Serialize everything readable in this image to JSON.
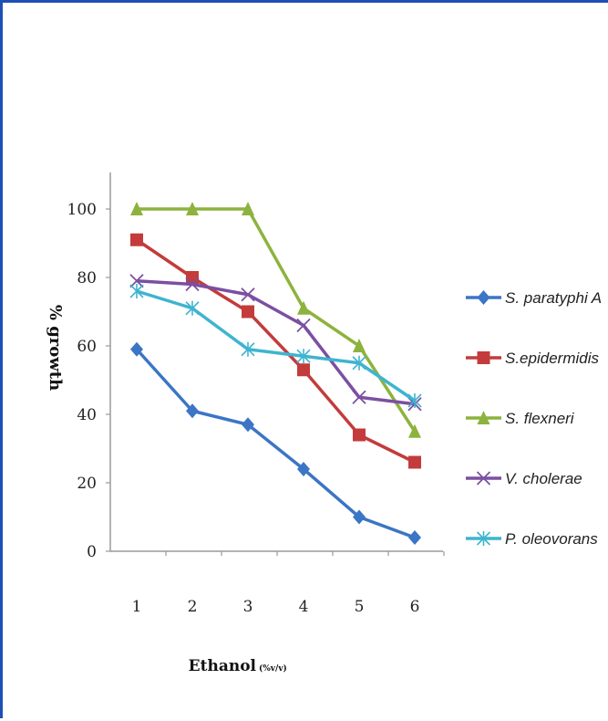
{
  "chart_data": {
    "type": "line",
    "xlabel": "Ethanol",
    "xlabel_unit": "(%v/v)",
    "ylabel": "% growth",
    "ylim": [
      0,
      110
    ],
    "yticks": [
      0,
      20,
      40,
      60,
      80,
      100
    ],
    "categories": [
      "1",
      "2",
      "3",
      "4",
      "5",
      "6"
    ],
    "legend_position": "right",
    "grid": false,
    "series": [
      {
        "name": "S. paratyphi A",
        "color": "#3b75c5",
        "marker": "diamond",
        "values": [
          59,
          41,
          37,
          24,
          10,
          4
        ]
      },
      {
        "name": "S.epidermidis",
        "color": "#c43b3b",
        "marker": "square",
        "values": [
          91,
          80,
          70,
          53,
          34,
          26
        ]
      },
      {
        "name": "S. flexneri",
        "color": "#8db33e",
        "marker": "triangle",
        "values": [
          100,
          100,
          100,
          71,
          60,
          35
        ]
      },
      {
        "name": "V. cholerae",
        "color": "#7b4fa1",
        "marker": "x",
        "values": [
          79,
          78,
          75,
          66,
          45,
          43
        ]
      },
      {
        "name": "P. oleovorans",
        "color": "#3fb4cf",
        "marker": "star",
        "values": [
          76,
          71,
          59,
          57,
          55,
          44
        ]
      }
    ]
  }
}
